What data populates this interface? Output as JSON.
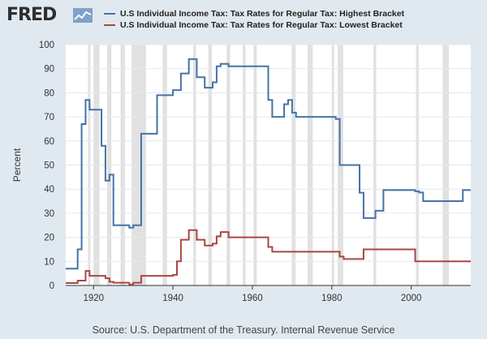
{
  "header": {
    "logo_text": "FRED",
    "logo_icon": "trend-chart-icon"
  },
  "colors": {
    "background": "#e1e9f0",
    "plot_background": "#ffffff",
    "recession": "#e1e1e1",
    "gridline": "#e1e9f0"
  },
  "source": "Source: U.S. Department of the Treasury. Internal Revenue Service",
  "chart_data": {
    "type": "line",
    "ylabel": "Percent",
    "xlim": [
      1913,
      2015
    ],
    "ylim": [
      0,
      100
    ],
    "yticks": [
      0,
      10,
      20,
      30,
      40,
      50,
      60,
      70,
      80,
      90,
      100
    ],
    "xticks": [
      1920,
      1940,
      1960,
      1980,
      2000
    ],
    "grid": true,
    "legend_position": "top",
    "recessions": [
      [
        1918.6,
        1919.2
      ],
      [
        1920.0,
        1921.5
      ],
      [
        1923.4,
        1924.5
      ],
      [
        1926.8,
        1927.9
      ],
      [
        1929.6,
        1933.2
      ],
      [
        1937.4,
        1938.5
      ],
      [
        1945.1,
        1945.8
      ],
      [
        1948.9,
        1949.8
      ],
      [
        1953.5,
        1954.4
      ],
      [
        1957.6,
        1958.3
      ],
      [
        1960.3,
        1961.1
      ],
      [
        1969.9,
        1970.9
      ],
      [
        1973.9,
        1975.2
      ],
      [
        1980.0,
        1980.6
      ],
      [
        1981.5,
        1982.9
      ],
      [
        1990.5,
        1991.2
      ],
      [
        2001.2,
        2001.9
      ],
      [
        2007.9,
        2009.5
      ]
    ],
    "series": [
      {
        "name": "U.S Individual Income Tax: Tax Rates for Regular Tax: Highest Bracket",
        "color": "#4572a7",
        "points": [
          [
            1913,
            7
          ],
          [
            1916,
            15
          ],
          [
            1917,
            67
          ],
          [
            1918,
            77
          ],
          [
            1919,
            73
          ],
          [
            1922,
            58
          ],
          [
            1923,
            43.5
          ],
          [
            1924,
            46
          ],
          [
            1925,
            25
          ],
          [
            1929,
            24
          ],
          [
            1930,
            25
          ],
          [
            1932,
            63
          ],
          [
            1936,
            79
          ],
          [
            1940,
            81.1
          ],
          [
            1942,
            88
          ],
          [
            1944,
            94
          ],
          [
            1946,
            86.45
          ],
          [
            1948,
            82.13
          ],
          [
            1950,
            84.36
          ],
          [
            1951,
            91
          ],
          [
            1952,
            92
          ],
          [
            1954,
            91
          ],
          [
            1964,
            77
          ],
          [
            1965,
            70
          ],
          [
            1968,
            75.25
          ],
          [
            1969,
            77
          ],
          [
            1970,
            71.75
          ],
          [
            1971,
            70
          ],
          [
            1981,
            69.125
          ],
          [
            1982,
            50
          ],
          [
            1987,
            38.5
          ],
          [
            1988,
            28
          ],
          [
            1991,
            31
          ],
          [
            1993,
            39.6
          ],
          [
            2001,
            39.1
          ],
          [
            2002,
            38.6
          ],
          [
            2003,
            35
          ],
          [
            2013,
            39.6
          ],
          [
            2015,
            39.6
          ]
        ]
      },
      {
        "name": "U.S Individual Income Tax: Tax Rates for Regular Tax: Lowest Bracket",
        "color": "#aa4643",
        "points": [
          [
            1913,
            1
          ],
          [
            1916,
            2
          ],
          [
            1918,
            6
          ],
          [
            1919,
            4
          ],
          [
            1923,
            3
          ],
          [
            1924,
            1.5
          ],
          [
            1925,
            1.125
          ],
          [
            1929,
            0.375
          ],
          [
            1930,
            1.125
          ],
          [
            1932,
            4
          ],
          [
            1940,
            4.4
          ],
          [
            1941,
            10
          ],
          [
            1942,
            19
          ],
          [
            1944,
            23
          ],
          [
            1946,
            19
          ],
          [
            1948,
            16.6
          ],
          [
            1950,
            17.4
          ],
          [
            1951,
            20.4
          ],
          [
            1952,
            22.2
          ],
          [
            1954,
            20
          ],
          [
            1964,
            16
          ],
          [
            1965,
            14
          ],
          [
            1982,
            12
          ],
          [
            1983,
            11
          ],
          [
            1987,
            11
          ],
          [
            1988,
            15
          ],
          [
            2001,
            10
          ],
          [
            2015,
            10
          ]
        ]
      }
    ]
  }
}
